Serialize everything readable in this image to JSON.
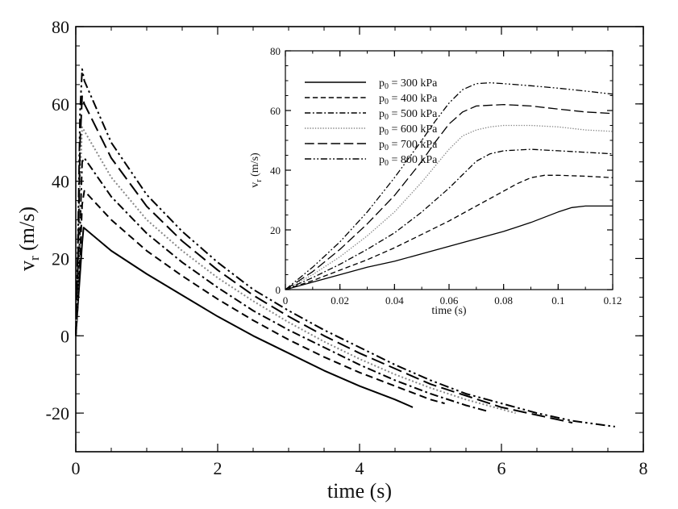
{
  "chart_data": [
    {
      "type": "line",
      "xlabel": "time (s)",
      "ylabel": {
        "main": "v",
        "sub": "r",
        "unit": " (m/s)"
      },
      "xlim": [
        0,
        8
      ],
      "ylim": [
        -30,
        80
      ],
      "xticks": [
        "0",
        "2",
        "4",
        "6",
        "8"
      ],
      "yticks": [
        "-20",
        "0",
        "20",
        "40",
        "60",
        "80"
      ],
      "grid": false,
      "series": [
        {
          "name": "p0 = 300 kPa",
          "dash": "solid",
          "color": "#000000",
          "x": [
            0,
            0.03,
            0.06,
            0.09,
            0.11,
            0.5,
            1,
            1.5,
            2,
            2.5,
            3,
            3.5,
            4,
            4.5,
            4.75
          ],
          "y": [
            0,
            8,
            16,
            24,
            28,
            22,
            16,
            10.5,
            5,
            0,
            -4.5,
            -9,
            -13,
            -16.5,
            -18.5
          ]
        },
        {
          "name": "p0 = 400 kPa",
          "dash": "dash",
          "color": "#000000",
          "x": [
            0,
            0.03,
            0.06,
            0.09,
            0.12,
            0.5,
            1,
            1.5,
            2,
            2.5,
            3,
            3.5,
            4,
            4.5,
            5,
            5.2
          ],
          "y": [
            0,
            8,
            20,
            34,
            37.5,
            30,
            22,
            15.5,
            9.5,
            4,
            -1,
            -5.5,
            -9.5,
            -13,
            -16.5,
            -17.5
          ]
        },
        {
          "name": "p0 = 500 kPa",
          "dash": "dashdot",
          "color": "#000000",
          "x": [
            0,
            0.03,
            0.06,
            0.09,
            0.12,
            0.5,
            1,
            1.5,
            2,
            2.5,
            3,
            3.5,
            4,
            4.5,
            5,
            5.5,
            5.8
          ],
          "y": [
            0,
            10,
            28,
            45,
            46,
            36,
            26.5,
            19,
            12.5,
            6.5,
            1.5,
            -3,
            -7.5,
            -11.5,
            -15,
            -18,
            -19.5
          ]
        },
        {
          "name": "p0 = 600 kPa",
          "dash": "dot",
          "color": "#888888",
          "x": [
            0,
            0.03,
            0.06,
            0.09,
            0.12,
            0.5,
            1,
            1.5,
            2,
            2.5,
            3,
            3.5,
            4,
            4.5,
            5,
            5.5,
            6,
            6.2
          ],
          "y": [
            0,
            14,
            40,
            54,
            53,
            41,
            30,
            22,
            15,
            9,
            3.5,
            -1.5,
            -6,
            -10,
            -13.5,
            -16.5,
            -19,
            -20
          ]
        },
        {
          "name": "p0 = 700 kPa",
          "dash": "longdash",
          "color": "#000000",
          "x": [
            0,
            0.03,
            0.06,
            0.09,
            0.12,
            0.5,
            1,
            1.5,
            2,
            2.5,
            3,
            3.5,
            4,
            4.5,
            5,
            5.5,
            6,
            6.5,
            7
          ],
          "y": [
            0,
            18,
            50,
            62,
            60,
            46,
            33.5,
            24.5,
            17,
            10.5,
            5,
            0,
            -4.5,
            -8.5,
            -12.5,
            -15.5,
            -18.5,
            -20.5,
            -22.5
          ]
        },
        {
          "name": "p0 = 800 kPa",
          "dash": "dashdotdot",
          "color": "#000000",
          "x": [
            0,
            0.03,
            0.06,
            0.09,
            0.12,
            0.5,
            1,
            1.5,
            2,
            2.5,
            3,
            3.5,
            4,
            4.5,
            5,
            5.5,
            6,
            6.5,
            7,
            7.6
          ],
          "y": [
            0,
            24,
            58,
            69,
            66,
            50,
            36.5,
            27,
            19,
            12,
            6.5,
            1.5,
            -3,
            -7.5,
            -11.5,
            -15,
            -17.5,
            -20,
            -22,
            -23.5
          ]
        }
      ]
    },
    {
      "type": "line",
      "role": "inset",
      "xlabel": "time (s)",
      "ylabel": {
        "main": "v",
        "sub": "r",
        "unit": " (m/s)"
      },
      "xlim": [
        0,
        0.12
      ],
      "ylim": [
        0,
        80
      ],
      "xticks": [
        "0",
        "0.02",
        "0.04",
        "0.06",
        "0.08",
        "0.1",
        "0.12"
      ],
      "yticks": [
        "0",
        "20",
        "40",
        "60",
        "80"
      ],
      "grid": false,
      "legend_position": "top-left",
      "legend": [
        {
          "prefix": "p",
          "sub": "0",
          "suffix": " = 300 kPa"
        },
        {
          "prefix": "p",
          "sub": "0",
          "suffix": " = 400 kPa"
        },
        {
          "prefix": "p",
          "sub": "0",
          "suffix": " = 500 kPa"
        },
        {
          "prefix": "p",
          "sub": "0",
          "suffix": " = 600 kPa"
        },
        {
          "prefix": "p",
          "sub": "0",
          "suffix": " = 700 kPa"
        },
        {
          "prefix": "p",
          "sub": "0",
          "suffix": " = 800 kPa"
        }
      ],
      "series": [
        {
          "name": "p0 = 300 kPa",
          "dash": "solid",
          "color": "#000000",
          "x": [
            0,
            0.01,
            0.02,
            0.03,
            0.04,
            0.05,
            0.06,
            0.07,
            0.08,
            0.09,
            0.1,
            0.105,
            0.11,
            0.115,
            0.12
          ],
          "y": [
            0,
            2.5,
            5,
            7.5,
            9.5,
            12,
            14.5,
            17,
            19.5,
            22.5,
            26,
            27.5,
            28,
            28,
            28
          ]
        },
        {
          "name": "p0 = 400 kPa",
          "dash": "dash",
          "color": "#000000",
          "x": [
            0,
            0.01,
            0.02,
            0.03,
            0.04,
            0.05,
            0.06,
            0.07,
            0.08,
            0.085,
            0.09,
            0.095,
            0.1,
            0.11,
            0.12
          ],
          "y": [
            0,
            3,
            6.5,
            10,
            14,
            18.5,
            23,
            28,
            33,
            35.5,
            37.5,
            38.3,
            38.3,
            38,
            37.5
          ]
        },
        {
          "name": "p0 = 500 kPa",
          "dash": "dashdot",
          "color": "#000000",
          "x": [
            0,
            0.01,
            0.02,
            0.03,
            0.04,
            0.05,
            0.06,
            0.065,
            0.07,
            0.075,
            0.08,
            0.09,
            0.1,
            0.11,
            0.12
          ],
          "y": [
            0,
            4,
            8.5,
            13.5,
            19,
            26,
            34,
            38.5,
            43,
            45.5,
            46.5,
            47,
            46.5,
            46,
            45.5
          ]
        },
        {
          "name": "p0 = 600 kPa",
          "dash": "dot",
          "color": "#888888",
          "x": [
            0,
            0.01,
            0.02,
            0.03,
            0.04,
            0.05,
            0.055,
            0.06,
            0.065,
            0.07,
            0.075,
            0.08,
            0.09,
            0.1,
            0.11,
            0.12
          ],
          "y": [
            0,
            5,
            11,
            18,
            26,
            36,
            41.5,
            47,
            51.5,
            53.5,
            54.5,
            55,
            55,
            54.5,
            53.5,
            53
          ]
        },
        {
          "name": "p0 = 700 kPa",
          "dash": "longdash",
          "color": "#000000",
          "x": [
            0,
            0.01,
            0.02,
            0.03,
            0.04,
            0.05,
            0.055,
            0.06,
            0.065,
            0.07,
            0.08,
            0.09,
            0.1,
            0.11,
            0.12
          ],
          "y": [
            0,
            6,
            13.5,
            22,
            31.5,
            43,
            49.5,
            55.5,
            59.5,
            61.5,
            62,
            61.5,
            60.5,
            59.5,
            59
          ]
        },
        {
          "name": "p0 = 800 kPa",
          "dash": "dashdotdot",
          "color": "#000000",
          "x": [
            0,
            0.01,
            0.02,
            0.03,
            0.04,
            0.05,
            0.055,
            0.06,
            0.065,
            0.07,
            0.075,
            0.08,
            0.09,
            0.1,
            0.11,
            0.12
          ],
          "y": [
            0,
            7.5,
            16,
            26,
            37.5,
            50,
            56.5,
            62.5,
            67,
            69,
            69.3,
            69,
            68.3,
            67.5,
            66.5,
            65.5
          ]
        }
      ]
    }
  ]
}
